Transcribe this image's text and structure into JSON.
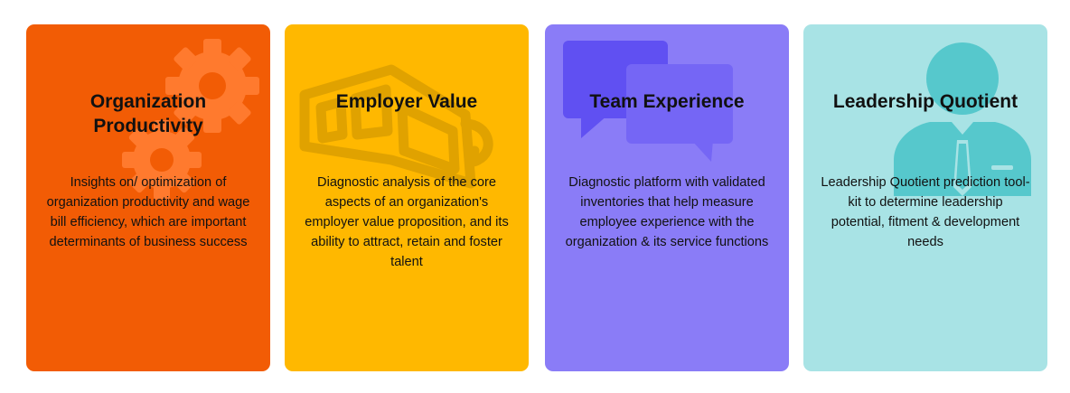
{
  "cards": [
    {
      "title_line1": "Organization",
      "title_line2": "Productivity",
      "description": "Insights on/ optimization of organization productivity and wage bill efficiency, which are important determinants of business success",
      "color": "#F25C05",
      "icon": "gears-icon"
    },
    {
      "title_line1": "Employer Value",
      "title_line2": "",
      "description": "Diagnostic analysis of the core aspects of an organization's employer value proposition, and its ability to attract, retain and foster talent",
      "color": "#FFB800",
      "icon": "3d-glasses-icon"
    },
    {
      "title_line1": "Team Experience",
      "title_line2": "",
      "description": "Diagnostic platform with validated inventories that help measure employee experience with the organization & its service functions",
      "color": "#8A7CF7",
      "icon": "chat-bubbles-icon"
    },
    {
      "title_line1": "Leadership Quotient",
      "title_line2": "",
      "description": "Leadership Quotient prediction tool-kit to determine leadership potential, fitment & development needs",
      "color": "#A8E3E5",
      "icon": "businessman-icon"
    }
  ]
}
